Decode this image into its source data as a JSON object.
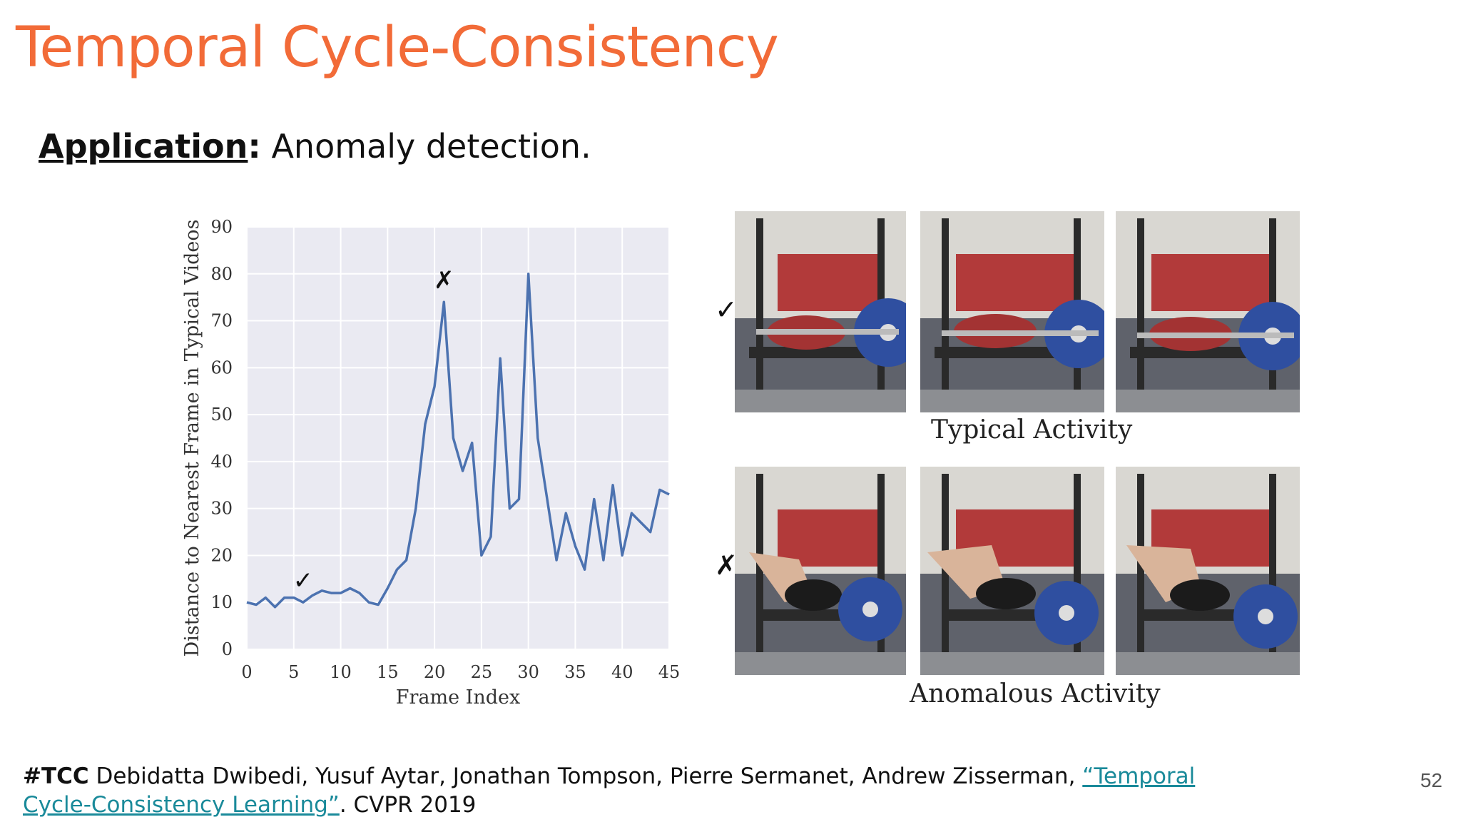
{
  "slide": {
    "title": "Temporal Cycle-Consistency",
    "subtitle_label": "Application",
    "subtitle_colon": ":",
    "subtitle_text": " Anomaly detection.",
    "page_number": "52"
  },
  "footer": {
    "tag": "#TCC",
    "authors": " Debidatta Dwibedi, Yusuf Aytar, Jonathan Tompson, Pierre Sermanet, Andrew Zisserman, ",
    "link_text": "“Temporal Cycle-Consistency Learning”",
    "venue": ". CVPR 2019"
  },
  "figure": {
    "typical_caption": "Typical Activity",
    "anomalous_caption": "Anomalous Activity",
    "typical_mark": "✓",
    "anomalous_mark": "✗"
  },
  "chart_data": {
    "type": "line",
    "title": "",
    "xlabel": "Frame Index",
    "ylabel": "Distance to Nearest Frame in Typical Videos",
    "xlim": [
      0,
      45
    ],
    "ylim": [
      0,
      90
    ],
    "xticks": [
      0,
      5,
      10,
      15,
      20,
      25,
      30,
      35,
      40,
      45
    ],
    "yticks": [
      0,
      10,
      20,
      30,
      40,
      50,
      60,
      70,
      80,
      90
    ],
    "grid": true,
    "line_color": "#4c72b0",
    "background_color": "#eaeaf2",
    "series": [
      {
        "x": [
          0,
          1,
          2,
          3,
          4,
          5,
          6,
          7,
          8,
          9,
          10,
          11,
          12,
          13,
          14,
          15,
          16,
          17,
          18,
          19,
          20,
          21,
          22,
          23,
          24,
          25,
          26,
          27,
          28,
          29,
          30,
          31,
          32,
          33,
          34,
          35,
          36,
          37,
          38,
          39,
          40,
          41,
          42,
          43,
          44,
          45
        ],
        "values": [
          10,
          9.5,
          11,
          9,
          11,
          11,
          10,
          11.5,
          12.5,
          12,
          12,
          13,
          12,
          10,
          9.5,
          13,
          17,
          19,
          30,
          48,
          56,
          74,
          45,
          38,
          44,
          20,
          24,
          62,
          30,
          32,
          80,
          45,
          32,
          19,
          29,
          22,
          17,
          32,
          19,
          35,
          20,
          29,
          27,
          25,
          34,
          33
        ]
      }
    ],
    "annotations": [
      {
        "text": "✓",
        "x": 6,
        "y": 12
      },
      {
        "text": "✗",
        "x": 21,
        "y": 76
      }
    ]
  }
}
